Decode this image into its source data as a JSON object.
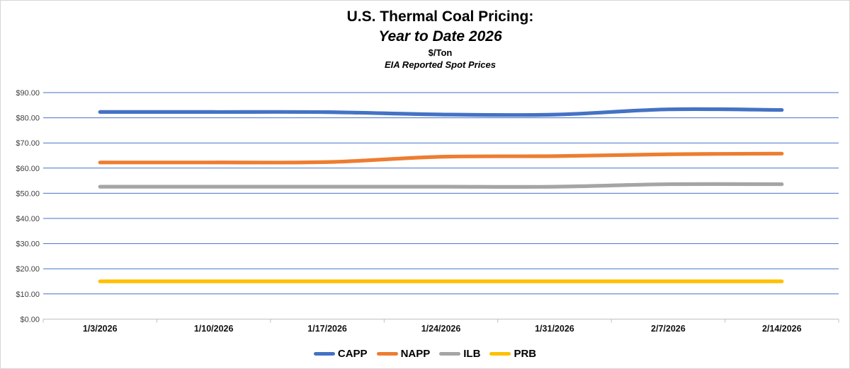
{
  "chart": {
    "title_line1": "U.S. Thermal Coal Pricing:",
    "title_line2": "Year to Date 2026",
    "units_line": "$/Ton",
    "subtitle": "EIA Reported Spot Prices"
  },
  "chart_data": {
    "type": "line",
    "smooth": true,
    "title": "U.S. Thermal Coal Pricing: Year to Date 2026",
    "ylabel": "$/Ton",
    "subtitle": "EIA Reported Spot Prices",
    "categories": [
      "1/3/2026",
      "1/10/2026",
      "1/17/2026",
      "1/24/2026",
      "1/31/2026",
      "2/7/2026",
      "2/14/2026"
    ],
    "series": [
      {
        "name": "CAPP",
        "color": "#4472C4",
        "values": [
          82.3,
          82.3,
          82.25,
          81.3,
          81.25,
          83.35,
          83.1
        ]
      },
      {
        "name": "NAPP",
        "color": "#ED7D31",
        "values": [
          62.25,
          62.25,
          62.4,
          64.5,
          64.75,
          65.5,
          65.75
        ]
      },
      {
        "name": "ILB",
        "color": "#A5A5A5",
        "values": [
          52.6,
          52.6,
          52.6,
          52.6,
          52.6,
          53.6,
          53.6
        ]
      },
      {
        "name": "PRB",
        "color": "#FFC000",
        "values": [
          15.0,
          15.0,
          15.0,
          15.0,
          15.0,
          15.0,
          15.0
        ]
      }
    ],
    "ylim": [
      0,
      90
    ],
    "y_tick_step": 10,
    "y_tick_labels": [
      "$0.00",
      "$10.00",
      "$20.00",
      "$30.00",
      "$40.00",
      "$50.00",
      "$60.00",
      "$70.00",
      "$80.00",
      "$90.00"
    ],
    "grid": "horizontal",
    "gridline_color": "#4472C4",
    "axis_line_color": "#BFBFBF",
    "y_label_color": "#404040",
    "x_label_color": "#111111",
    "legend_position": "bottom"
  }
}
